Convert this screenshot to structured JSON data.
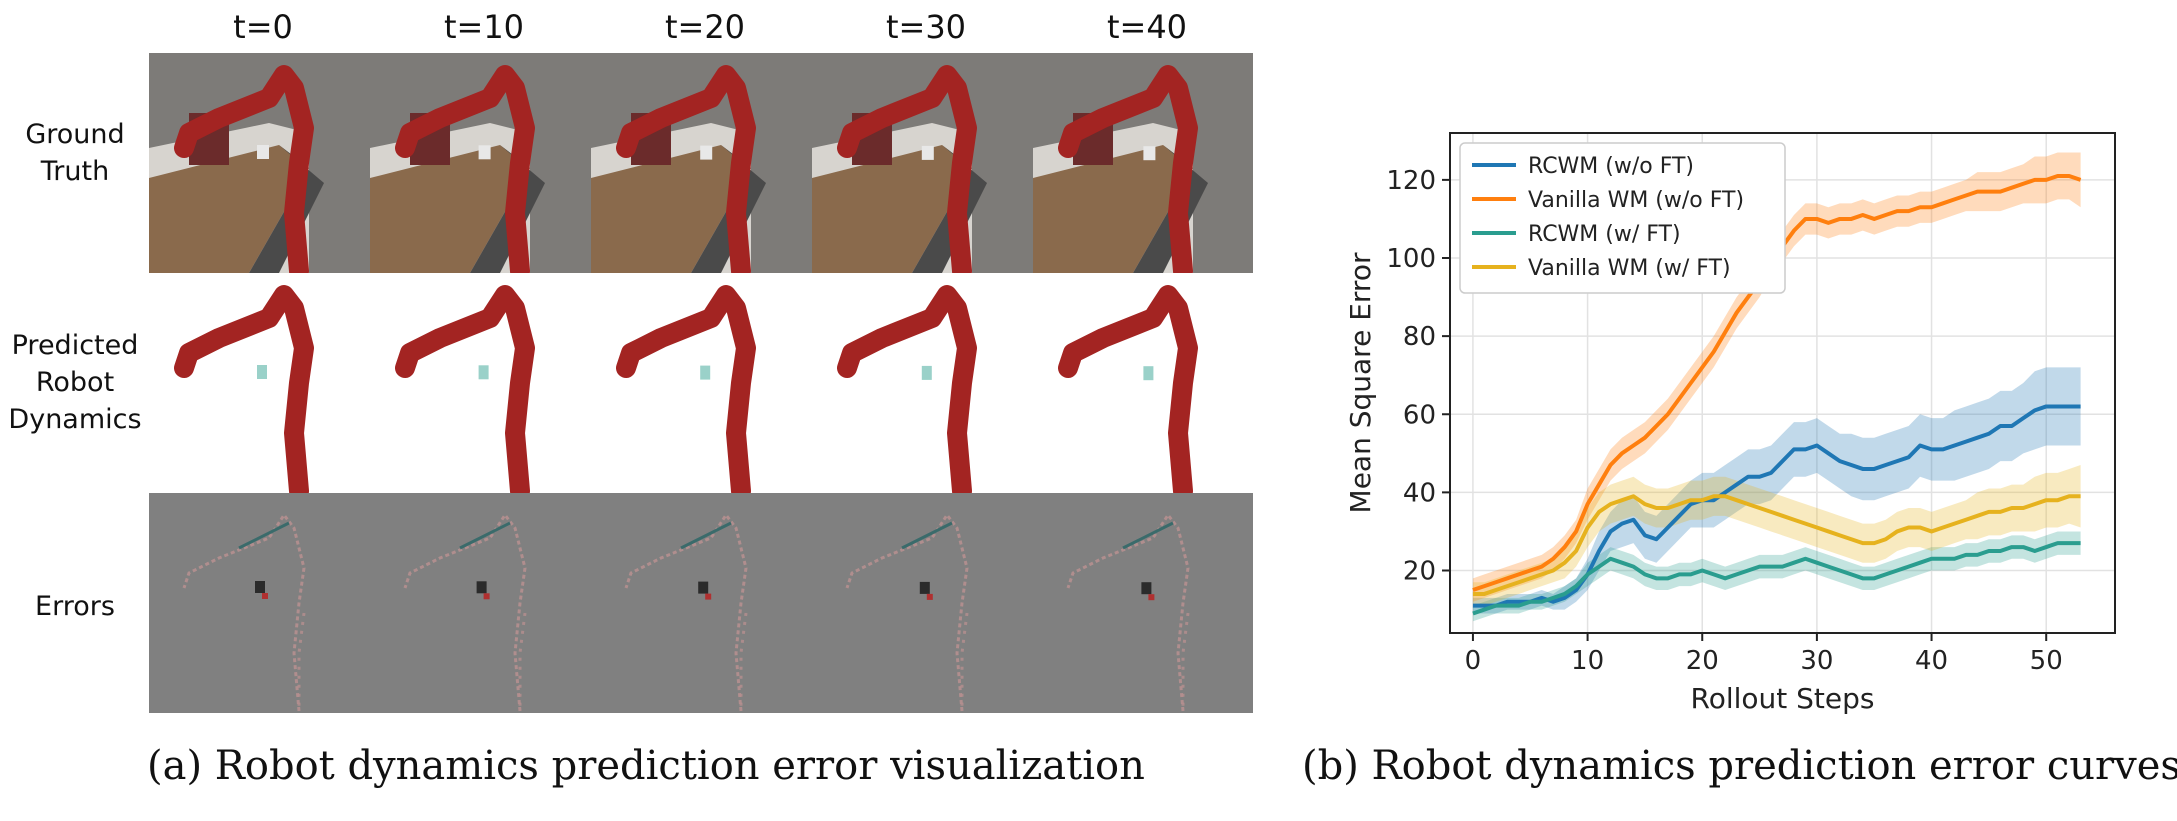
{
  "panel_a": {
    "column_headers": [
      "t=0",
      "t=10",
      "t=20",
      "t=30",
      "t=40"
    ],
    "row_labels": [
      [
        "Ground",
        "Truth"
      ],
      [
        "Predicted",
        "Robot",
        "Dynamics"
      ],
      [
        "Errors"
      ]
    ],
    "caption": "(a)  Robot dynamics prediction error visualization"
  },
  "panel_b": {
    "caption": "(b)  Robot dynamics prediction error curves"
  },
  "colors": {
    "rcwm_wo_ft": "#1f77b4",
    "vanilla_wo_ft": "#ff7f0e",
    "rcwm_w_ft": "#2a9d8f",
    "vanilla_w_ft": "#e6b21e",
    "robot_arm": "#a32422",
    "table_wood": "#8a6a4c"
  },
  "chart_data": {
    "type": "line",
    "xlabel": "Rollout Steps",
    "ylabel": "Mean Square Error",
    "xlim": [
      -2,
      56
    ],
    "ylim": [
      4,
      132
    ],
    "xticks": [
      0,
      10,
      20,
      30,
      40,
      50
    ],
    "yticks": [
      20,
      40,
      60,
      80,
      100,
      120
    ],
    "grid": true,
    "legend_position": "top-left",
    "x": [
      0,
      1,
      2,
      3,
      4,
      5,
      6,
      7,
      8,
      9,
      10,
      11,
      12,
      13,
      14,
      15,
      16,
      17,
      18,
      19,
      20,
      21,
      22,
      23,
      24,
      25,
      26,
      27,
      28,
      29,
      30,
      31,
      32,
      33,
      34,
      35,
      36,
      37,
      38,
      39,
      40,
      41,
      42,
      43,
      44,
      45,
      46,
      47,
      48,
      49,
      50,
      51,
      52,
      53
    ],
    "series": [
      {
        "name": "RCWM (w/o FT)",
        "color": "#1f77b4",
        "values": [
          11,
          11,
          11,
          12,
          12,
          12,
          13,
          12,
          13,
          15,
          19,
          25,
          30,
          32,
          33,
          29,
          28,
          31,
          34,
          37,
          38,
          38,
          40,
          42,
          44,
          44,
          45,
          48,
          51,
          51,
          52,
          50,
          48,
          47,
          46,
          46,
          47,
          48,
          49,
          52,
          51,
          51,
          52,
          53,
          54,
          55,
          57,
          57,
          59,
          61,
          62,
          62,
          62,
          62
        ],
        "band": [
          2,
          2,
          2,
          2,
          2,
          2,
          2,
          2,
          3,
          3,
          4,
          5,
          5,
          6,
          6,
          6,
          6,
          6,
          6,
          6,
          7,
          7,
          7,
          7,
          7,
          7,
          7,
          7,
          7,
          7,
          7,
          7,
          7,
          8,
          8,
          8,
          8,
          8,
          8,
          8,
          8,
          8,
          9,
          9,
          9,
          9,
          9,
          9,
          9,
          10,
          10,
          10,
          10,
          10
        ]
      },
      {
        "name": "Vanilla WM (w/o FT)",
        "color": "#ff7f0e",
        "values": [
          15,
          16,
          17,
          18,
          19,
          20,
          21,
          23,
          26,
          30,
          37,
          42,
          47,
          50,
          52,
          54,
          57,
          60,
          64,
          68,
          72,
          76,
          81,
          86,
          90,
          94,
          99,
          103,
          107,
          110,
          110,
          109,
          110,
          110,
          111,
          110,
          111,
          112,
          112,
          113,
          113,
          114,
          115,
          116,
          117,
          117,
          117,
          118,
          119,
          120,
          120,
          121,
          121,
          120
        ],
        "band": [
          3,
          3,
          3,
          3,
          3,
          3,
          3,
          3,
          3,
          3,
          4,
          4,
          4,
          4,
          4,
          4,
          4,
          4,
          4,
          4,
          4,
          4,
          4,
          4,
          4,
          4,
          4,
          4,
          4,
          4,
          4,
          4,
          4,
          4,
          4,
          4,
          4,
          4,
          4,
          4,
          4,
          4,
          4,
          4,
          5,
          5,
          5,
          5,
          5,
          6,
          6,
          6,
          6,
          7
        ]
      },
      {
        "name": "RCWM (w/ FT)",
        "color": "#2a9d8f",
        "values": [
          9,
          10,
          11,
          11,
          11,
          12,
          12,
          13,
          14,
          16,
          19,
          21,
          23,
          22,
          21,
          19,
          18,
          18,
          19,
          19,
          20,
          19,
          18,
          19,
          20,
          21,
          21,
          21,
          22,
          23,
          22,
          21,
          20,
          19,
          18,
          18,
          19,
          20,
          21,
          22,
          23,
          23,
          23,
          24,
          24,
          25,
          25,
          26,
          26,
          25,
          26,
          27,
          27,
          27
        ],
        "band": [
          2,
          2,
          2,
          2,
          2,
          2,
          2,
          2,
          2,
          2,
          3,
          3,
          3,
          3,
          3,
          3,
          3,
          3,
          3,
          3,
          3,
          3,
          3,
          3,
          3,
          3,
          3,
          3,
          3,
          3,
          3,
          3,
          3,
          3,
          3,
          3,
          3,
          3,
          3,
          3,
          3,
          3,
          3,
          3,
          3,
          3,
          3,
          3,
          3,
          3,
          3,
          3,
          3,
          3
        ]
      },
      {
        "name": "Vanilla WM (w/ FT)",
        "color": "#e6b21e",
        "values": [
          14,
          14,
          15,
          16,
          17,
          18,
          19,
          20,
          22,
          25,
          31,
          35,
          37,
          38,
          39,
          37,
          36,
          36,
          37,
          38,
          38,
          39,
          39,
          38,
          37,
          36,
          35,
          34,
          33,
          32,
          31,
          30,
          29,
          28,
          27,
          27,
          28,
          30,
          31,
          31,
          30,
          31,
          32,
          33,
          34,
          35,
          35,
          36,
          36,
          37,
          38,
          38,
          39,
          39
        ],
        "band": [
          3,
          3,
          3,
          3,
          3,
          3,
          3,
          3,
          4,
          4,
          5,
          5,
          5,
          5,
          5,
          5,
          5,
          5,
          5,
          5,
          5,
          5,
          5,
          5,
          5,
          5,
          5,
          5,
          5,
          5,
          5,
          5,
          5,
          5,
          5,
          5,
          5,
          5,
          5,
          5,
          5,
          5,
          5,
          5,
          6,
          6,
          6,
          6,
          6,
          7,
          7,
          7,
          7,
          8
        ]
      }
    ]
  }
}
